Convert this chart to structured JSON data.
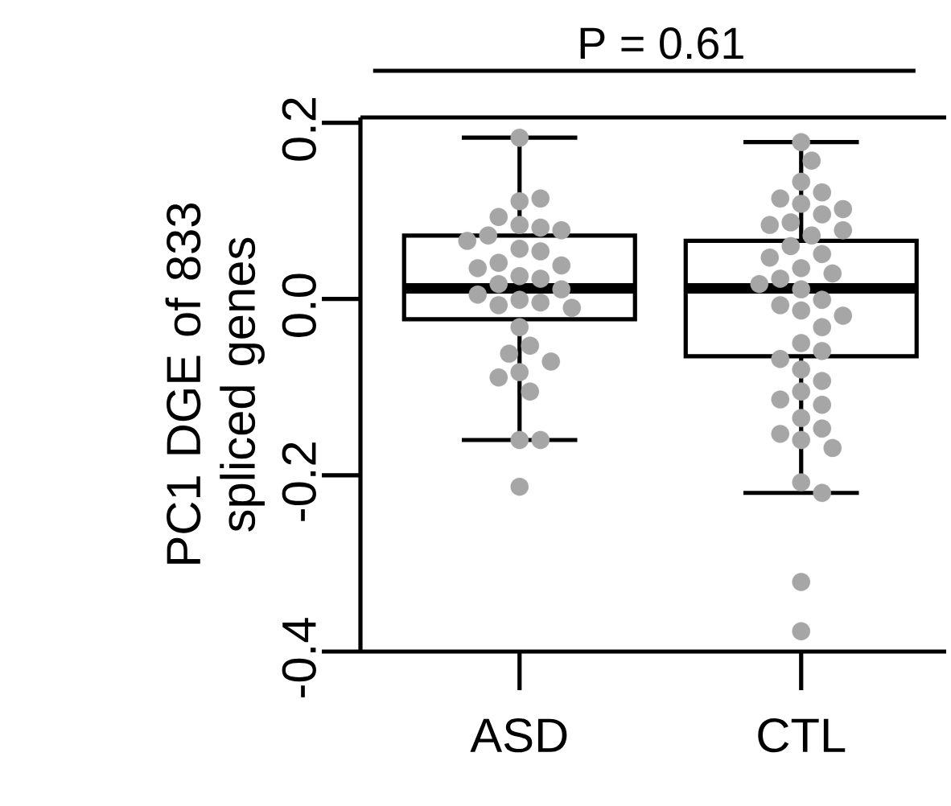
{
  "chart_data": {
    "type": "box",
    "ylabel": "PC1 DGE of 833 spliced genes",
    "annotations": [
      "P = 0.61"
    ],
    "categories": [
      "ASD",
      "CTL"
    ],
    "boxes": [
      {
        "low": -0.16,
        "q1": -0.023,
        "median": 0.012,
        "q3": 0.072,
        "high": 0.183
      },
      {
        "low": -0.22,
        "q1": -0.065,
        "median": 0.012,
        "q3": 0.066,
        "high": 0.178
      }
    ],
    "ylim": [
      -0.4,
      0.206
    ],
    "yticks": [
      -0.4,
      -0.2,
      {
        "value": 0,
        "label": "0.0"
      },
      0.2
    ],
    "series": [
      {
        "type": "scatter",
        "color": "#a6a6a6",
        "marker": "circle",
        "x": [
          "ASD",
          "ASD",
          "ASD",
          "ASD",
          "ASD",
          "ASD",
          "ASD",
          "ASD",
          "ASD",
          "ASD",
          "ASD",
          "ASD",
          "ASD",
          "ASD",
          "ASD",
          "ASD",
          "ASD",
          "ASD",
          "ASD",
          "ASD",
          "ASD",
          "ASD",
          "ASD",
          "ASD",
          "ASD",
          "ASD",
          "ASD",
          "ASD",
          "ASD",
          "ASD",
          "ASD",
          "ASD",
          "ASD",
          "CTL",
          "CTL",
          "CTL",
          "CTL",
          "CTL",
          "CTL",
          "CTL",
          "CTL",
          "CTL",
          "CTL",
          "CTL",
          "CTL",
          "CTL",
          "CTL",
          "CTL",
          "CTL",
          "CTL",
          "CTL",
          "CTL",
          "CTL",
          "CTL",
          "CTL",
          "CTL",
          "CTL",
          "CTL",
          "CTL",
          "CTL",
          "CTL",
          "CTL",
          "CTL",
          "CTL",
          "CTL",
          "CTL",
          "CTL",
          "CTL",
          "CTL",
          "CTL",
          "CTL",
          "CTL",
          "CTL",
          "CTL",
          "CTL"
        ],
        "values": [
          0.183,
          0.111,
          0.114,
          0.093,
          0.084,
          0.081,
          0.078,
          0.072,
          0.066,
          0.057,
          0.054,
          0.041,
          0.038,
          0.035,
          0.026,
          0.023,
          0.017,
          0.011,
          0.005,
          -0.001,
          -0.004,
          -0.007,
          -0.01,
          -0.032,
          -0.053,
          -0.062,
          -0.071,
          -0.083,
          -0.089,
          -0.105,
          -0.16,
          -0.16,
          -0.213,
          0.178,
          0.157,
          0.133,
          0.121,
          0.114,
          0.108,
          0.102,
          0.096,
          0.087,
          0.084,
          0.078,
          0.072,
          0.06,
          0.051,
          0.047,
          0.035,
          0.029,
          0.023,
          0.017,
          0.011,
          -0.001,
          -0.007,
          -0.013,
          -0.019,
          -0.032,
          -0.05,
          -0.059,
          -0.068,
          -0.08,
          -0.093,
          -0.105,
          -0.114,
          -0.12,
          -0.135,
          -0.147,
          -0.153,
          -0.16,
          -0.169,
          -0.208,
          -0.22,
          -0.321,
          -0.377
        ]
      }
    ]
  }
}
